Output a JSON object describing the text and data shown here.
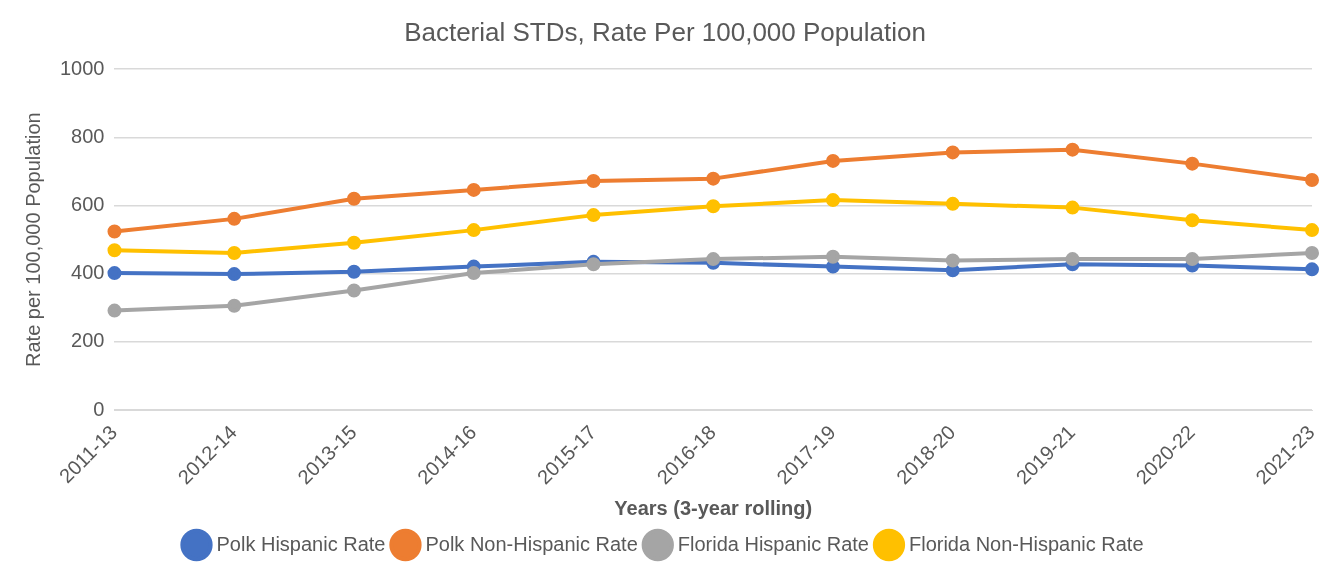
{
  "chart_data": {
    "type": "line",
    "title": "Bacterial STDs, Rate Per 100,000 Population",
    "xlabel": "Years (3-year rolling)",
    "ylabel": "Rate per 100,000 Population",
    "categories": [
      "2011-13",
      "2012-14",
      "2013-15",
      "2014-16",
      "2015-17",
      "2016-18",
      "2017-19",
      "2018-20",
      "2019-21",
      "2020-22",
      "2021-23"
    ],
    "series": [
      {
        "name": "Polk Hispanic Rate",
        "color": "#4472c4",
        "values": [
          402,
          399,
          406,
          421,
          435,
          432,
          421,
          410,
          428,
          424,
          413
        ]
      },
      {
        "name": "Polk Non-Hispanic Rate",
        "color": "#ed7d31",
        "values": [
          524,
          561,
          620,
          646,
          672,
          679,
          731,
          756,
          764,
          723,
          675
        ]
      },
      {
        "name": "Florida Hispanic Rate",
        "color": "#a5a5a5",
        "values": [
          292,
          306,
          351,
          402,
          428,
          443,
          450,
          439,
          443,
          443,
          461
        ]
      },
      {
        "name": "Florida Non-Hispanic Rate",
        "color": "#ffc000",
        "values": [
          469,
          461,
          491,
          528,
          572,
          598,
          616,
          605,
          594,
          557,
          528
        ]
      }
    ],
    "ylim": [
      0,
      1000
    ],
    "yticks": [
      0,
      200,
      400,
      600,
      800,
      1000
    ],
    "grid": "y",
    "legend": "bottom",
    "marker": "circle",
    "line_style": "solid"
  }
}
